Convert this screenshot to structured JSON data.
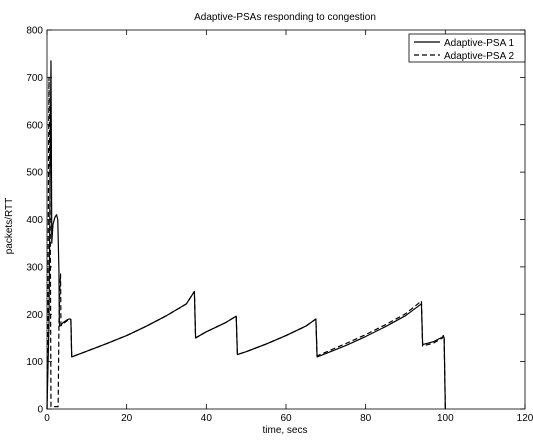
{
  "chart_data": {
    "type": "line",
    "title": "Adaptive-PSAs responding to congestion",
    "xlabel": "time, secs",
    "ylabel": "packets/RTT",
    "xlim": [
      0,
      120
    ],
    "ylim": [
      0,
      800
    ],
    "x_ticks": [
      0,
      20,
      40,
      60,
      80,
      100,
      120
    ],
    "y_ticks": [
      0,
      100,
      200,
      300,
      400,
      500,
      600,
      700,
      800
    ],
    "grid": false,
    "legend_position": "top-right",
    "series": [
      {
        "name": "Adaptive-PSA 1",
        "style": "solid",
        "color": "#000000",
        "x": [
          0,
          0.5,
          1.0,
          1.2,
          1.5,
          2.0,
          2.4,
          2.7,
          3.0,
          3.1,
          3.2,
          3.6,
          4.0,
          4.5,
          5.0,
          5.5,
          5.8,
          6.0,
          6.2,
          10,
          15,
          20,
          25,
          30,
          35,
          37,
          37.3,
          40,
          45,
          47.5,
          47.8,
          50,
          55,
          60,
          65,
          67.5,
          67.8,
          70,
          75,
          80,
          85,
          90,
          94,
          94.3,
          97,
          99.3,
          99.5,
          99.7,
          100
        ],
        "y": [
          0,
          180,
          735,
          350,
          390,
          405,
          410,
          400,
          290,
          180,
          175,
          178,
          182,
          185,
          188,
          190,
          190,
          188,
          110,
          122,
          138,
          155,
          175,
          197,
          222,
          248,
          150,
          163,
          183,
          196,
          115,
          121,
          137,
          155,
          175,
          190,
          110,
          117,
          134,
          153,
          174,
          197,
          222,
          136,
          142,
          152,
          155,
          150,
          0
        ]
      },
      {
        "name": "Adaptive-PSA 2",
        "style": "dashed",
        "color": "#000000",
        "x": [
          0,
          0.2,
          0.4,
          0.5,
          0.8,
          1.0,
          2.0,
          2.8,
          3.0,
          3.2,
          3.4,
          3.5,
          3.6,
          4.0,
          5.0,
          6.0,
          6.2,
          10,
          15,
          20,
          25,
          30,
          35,
          37,
          37.3,
          40,
          45,
          47.5,
          47.8,
          50,
          55,
          60,
          65,
          67.5,
          67.8,
          70,
          75,
          80,
          85,
          90,
          94,
          94.3,
          97,
          99.3,
          99.5,
          99.7,
          100
        ],
        "y": [
          0,
          150,
          540,
          700,
          420,
          5,
          5,
          5,
          180,
          250,
          285,
          180,
          176,
          180,
          186,
          189,
          110,
          122,
          138,
          155,
          175,
          197,
          222,
          248,
          150,
          163,
          183,
          196,
          115,
          121,
          137,
          155,
          175,
          190,
          112,
          120,
          138,
          157,
          178,
          201,
          228,
          133,
          139,
          150,
          155,
          150,
          0
        ]
      }
    ]
  }
}
